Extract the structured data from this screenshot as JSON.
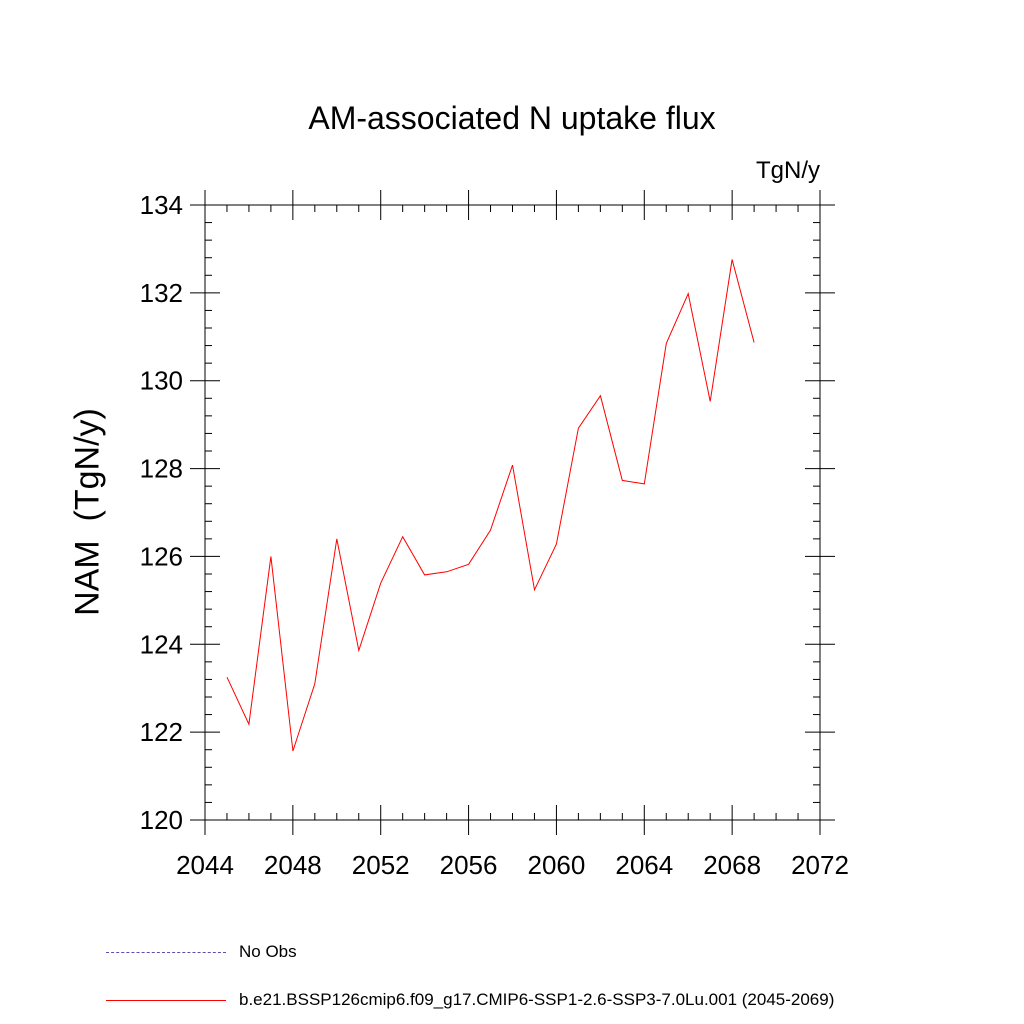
{
  "chart_data": {
    "type": "line",
    "title": "AM-associated N uptake flux",
    "units_label": "TgN/y",
    "ylabel": "NAM  (TgN/y)",
    "xlabel": "",
    "xlim": [
      2044,
      2072
    ],
    "ylim": [
      120,
      134
    ],
    "x_ticks": [
      2044,
      2048,
      2052,
      2056,
      2060,
      2064,
      2068,
      2072
    ],
    "y_ticks": [
      120,
      122,
      124,
      126,
      128,
      130,
      132,
      134
    ],
    "grid": false,
    "legend_position": "bottom",
    "series": [
      {
        "name": "b.e21.BSSP126cmip6.f09_g17.CMIP6-SSP1-2.6-SSP3-7.0Lu.001 (2045-2069)",
        "color": "#ff0000",
        "x": [
          2045,
          2046,
          2047,
          2048,
          2049,
          2050,
          2051,
          2052,
          2053,
          2054,
          2055,
          2056,
          2057,
          2058,
          2059,
          2060,
          2061,
          2062,
          2063,
          2064,
          2065,
          2066,
          2067,
          2068,
          2069
        ],
        "values": [
          123.25,
          122.18,
          126.0,
          121.57,
          123.1,
          126.4,
          123.86,
          125.39,
          126.45,
          125.58,
          125.65,
          125.82,
          126.6,
          128.08,
          125.24,
          126.28,
          128.92,
          129.66,
          127.73,
          127.65,
          130.85,
          131.98,
          129.53,
          132.76,
          130.87
        ]
      }
    ]
  },
  "legend": [
    {
      "label": "No Obs",
      "color": "#5a4fb5",
      "style": "dashed"
    },
    {
      "label": "b.e21.BSSP126cmip6.f09_g17.CMIP6-SSP1-2.6-SSP3-7.0Lu.001 (2045-2069)",
      "color": "#ff0000",
      "style": "solid"
    }
  ]
}
